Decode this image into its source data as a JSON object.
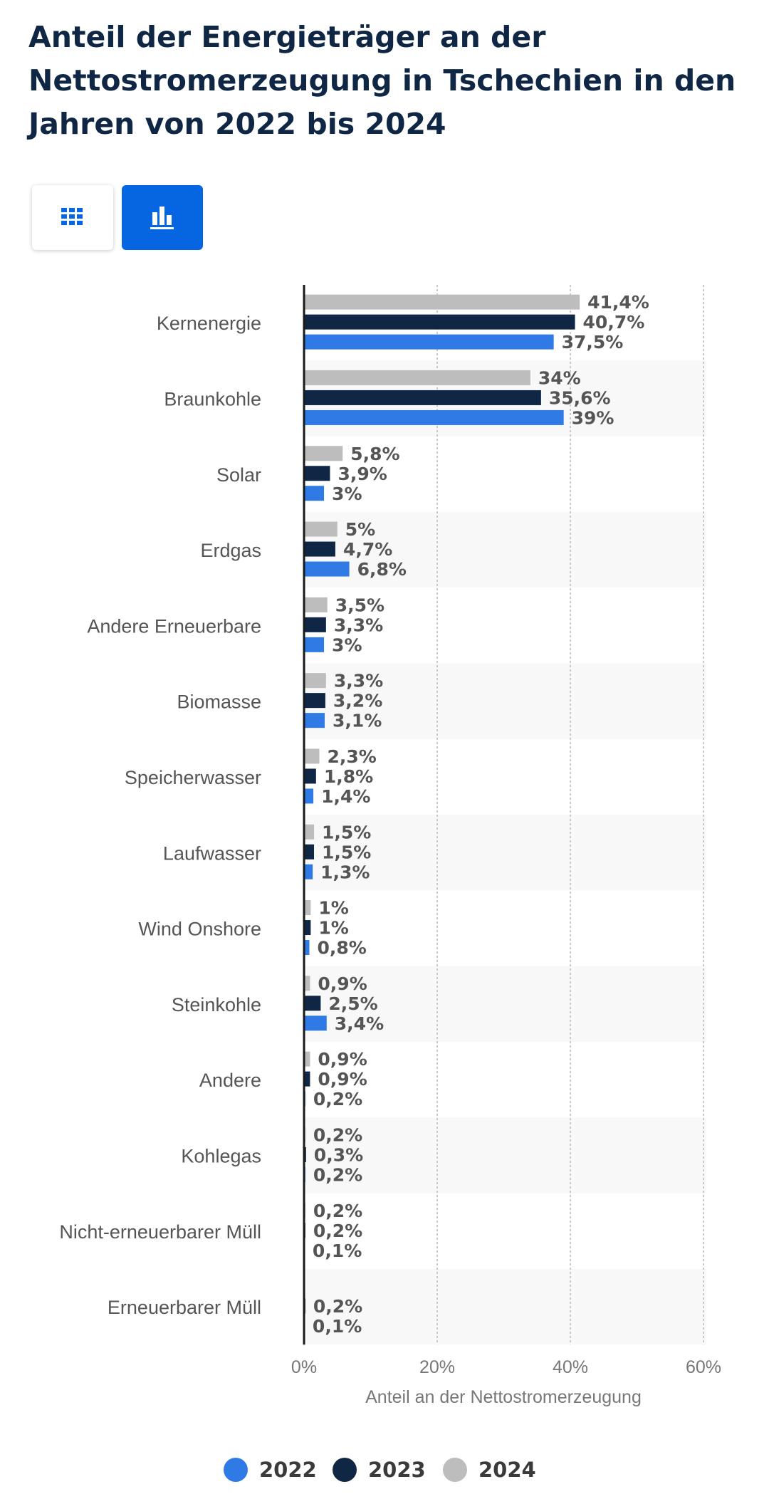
{
  "title": "Anteil der Energieträger an der Nettostromerzeugung in Tschechien in den Jahren von 2022 bis 2024",
  "view_toggle": {
    "table_icon": "table-grid-icon",
    "chart_icon": "bar-chart-icon",
    "active": "chart"
  },
  "colors": {
    "2022": "#2f7ae5",
    "2023": "#0f2744",
    "2024": "#bdbdbd",
    "title": "#0f2744",
    "toggle_active": "#0666e2"
  },
  "chart_data": {
    "type": "bar",
    "orientation": "horizontal",
    "xlabel": "Anteil an der Nettostromerzeugung",
    "ylabel": "",
    "xlim": [
      0,
      60
    ],
    "xticks": [
      "0%",
      "20%",
      "40%",
      "60%"
    ],
    "grid": true,
    "legend_position": "bottom",
    "categories": [
      "Kernenergie",
      "Braunkohle",
      "Solar",
      "Erdgas",
      "Andere Erneuerbare",
      "Biomasse",
      "Speicherwasser",
      "Laufwasser",
      "Wind Onshore",
      "Steinkohle",
      "Andere",
      "Kohlegas",
      "Nicht-erneuerbarer Müll",
      "Erneuerbarer Müll"
    ],
    "series": [
      {
        "name": "2024",
        "values": [
          41.4,
          34,
          5.8,
          5,
          3.5,
          3.3,
          2.3,
          1.5,
          1,
          0.9,
          0.9,
          0.2,
          0.2,
          null
        ],
        "labels": [
          "41,4%",
          "34%",
          "5,8%",
          "5%",
          "3,5%",
          "3,3%",
          "2,3%",
          "1,5%",
          "1%",
          "0,9%",
          "0,9%",
          "0,2%",
          "0,2%",
          ""
        ]
      },
      {
        "name": "2023",
        "values": [
          40.7,
          35.6,
          3.9,
          4.7,
          3.3,
          3.2,
          1.8,
          1.5,
          1,
          2.5,
          0.9,
          0.3,
          0.2,
          0.2
        ],
        "labels": [
          "40,7%",
          "35,6%",
          "3,9%",
          "4,7%",
          "3,3%",
          "3,2%",
          "1,8%",
          "1,5%",
          "1%",
          "2,5%",
          "0,9%",
          "0,3%",
          "0,2%",
          "0,2%"
        ]
      },
      {
        "name": "2022",
        "values": [
          37.5,
          39,
          3,
          6.8,
          3,
          3.1,
          1.4,
          1.3,
          0.8,
          3.4,
          0.2,
          0.2,
          0.1,
          0.1
        ],
        "labels": [
          "37,5%",
          "39%",
          "3%",
          "6,8%",
          "3%",
          "3,1%",
          "1,4%",
          "1,3%",
          "0,8%",
          "3,4%",
          "0,2%",
          "0,2%",
          "0,1%",
          "0,1%"
        ]
      }
    ]
  },
  "legend": [
    {
      "label": "2022",
      "color": "#2f7ae5"
    },
    {
      "label": "2023",
      "color": "#0f2744"
    },
    {
      "label": "2024",
      "color": "#bdbdbd"
    }
  ]
}
